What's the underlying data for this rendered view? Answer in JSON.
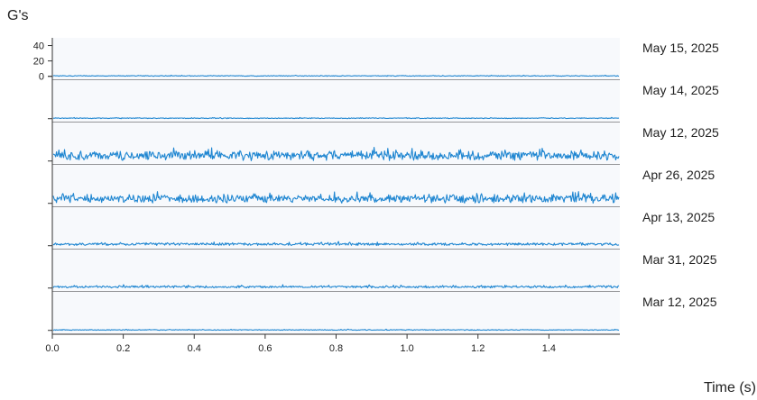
{
  "chart_data": {
    "type": "line",
    "ylabel": "G's",
    "xlabel": "Time (s)",
    "x_range": [
      0,
      1.6
    ],
    "x_ticks": [
      "0.0",
      "0.2",
      "0.4",
      "0.6",
      "0.8",
      "1.0",
      "1.2",
      "1.4"
    ],
    "y_range": [
      -5,
      50
    ],
    "y_ticks": [
      "40",
      "20",
      "0"
    ],
    "series_color": "#1f86d1",
    "series": [
      {
        "name": "May 15, 2025",
        "baseline": 0,
        "amplitude": 1.5
      },
      {
        "name": "May 14, 2025",
        "baseline": 0,
        "amplitude": 1.5
      },
      {
        "name": "May 12, 2025",
        "baseline": 0,
        "amplitude": 17
      },
      {
        "name": "Apr 26, 2025",
        "baseline": 0,
        "amplitude": 15
      },
      {
        "name": "Apr 13, 2025",
        "baseline": 0,
        "amplitude": 5
      },
      {
        "name": "Mar 31, 2025",
        "baseline": 0,
        "amplitude": 4
      },
      {
        "name": "Mar 12, 2025",
        "baseline": 0,
        "amplitude": 1.5
      }
    ]
  }
}
